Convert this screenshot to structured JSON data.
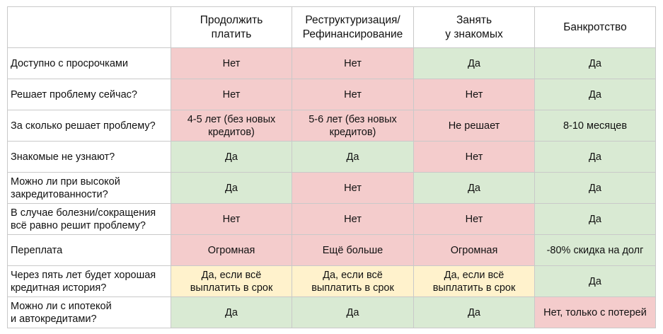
{
  "table": {
    "columns": [
      "",
      "Продолжить\nплатить",
      "Реструктуризация/\nРефинансирование",
      "Занять\nу знакомых",
      "Банкротство"
    ],
    "rows": [
      {
        "question": "Доступно с просрочками",
        "cells": [
          {
            "text": "Нет",
            "color": "red"
          },
          {
            "text": "Нет",
            "color": "red"
          },
          {
            "text": "Да",
            "color": "green"
          },
          {
            "text": "Да",
            "color": "green"
          }
        ]
      },
      {
        "question": "Решает проблему сейчас?",
        "cells": [
          {
            "text": "Нет",
            "color": "red"
          },
          {
            "text": "Нет",
            "color": "red"
          },
          {
            "text": "Нет",
            "color": "red"
          },
          {
            "text": "Да",
            "color": "green"
          }
        ]
      },
      {
        "question": "За сколько решает проблему?",
        "cells": [
          {
            "text": "4-5 лет (без новых\nкредитов)",
            "color": "red"
          },
          {
            "text": "5-6 лет (без новых\nкредитов)",
            "color": "red"
          },
          {
            "text": "Не решает",
            "color": "red"
          },
          {
            "text": "8-10 месяцев",
            "color": "green"
          }
        ]
      },
      {
        "question": "Знакомые не узнают?",
        "cells": [
          {
            "text": "Да",
            "color": "green"
          },
          {
            "text": "Да",
            "color": "green"
          },
          {
            "text": "Нет",
            "color": "red"
          },
          {
            "text": "Да",
            "color": "green"
          }
        ]
      },
      {
        "question": "Можно ли при высокой\nзакредитованности?",
        "cells": [
          {
            "text": "Да",
            "color": "green"
          },
          {
            "text": "Нет",
            "color": "red"
          },
          {
            "text": "Да",
            "color": "green"
          },
          {
            "text": "Да",
            "color": "green"
          }
        ]
      },
      {
        "question": "В случае болезни/сокращения\nвсё равно решит проблему?",
        "cells": [
          {
            "text": "Нет",
            "color": "red"
          },
          {
            "text": "Нет",
            "color": "red"
          },
          {
            "text": "Нет",
            "color": "red"
          },
          {
            "text": "Да",
            "color": "green"
          }
        ]
      },
      {
        "question": "Переплата",
        "cells": [
          {
            "text": "Огромная",
            "color": "red"
          },
          {
            "text": "Ещё больше",
            "color": "red"
          },
          {
            "text": "Огромная",
            "color": "red"
          },
          {
            "text": "-80% скидка на долг",
            "color": "green"
          }
        ]
      },
      {
        "question": "Через пять лет будет хорошая\nкредитная история?",
        "cells": [
          {
            "text": "Да, если всё\nвыплатить в срок",
            "color": "yellow"
          },
          {
            "text": "Да, если всё\nвыплатить в срок",
            "color": "yellow"
          },
          {
            "text": "Да, если всё\nвыплатить в срок",
            "color": "yellow"
          },
          {
            "text": "Да",
            "color": "green"
          }
        ]
      },
      {
        "question": "Можно ли с ипотекой\nи автокредитами?",
        "cells": [
          {
            "text": "Да",
            "color": "green"
          },
          {
            "text": "Да",
            "color": "green"
          },
          {
            "text": "Да",
            "color": "green"
          },
          {
            "text": "Нет, только с потерей",
            "color": "red"
          }
        ]
      }
    ]
  },
  "colors": {
    "red": "#f4cccc",
    "green": "#d9ead3",
    "yellow": "#fff2cc",
    "border": "#c9c9c9"
  }
}
